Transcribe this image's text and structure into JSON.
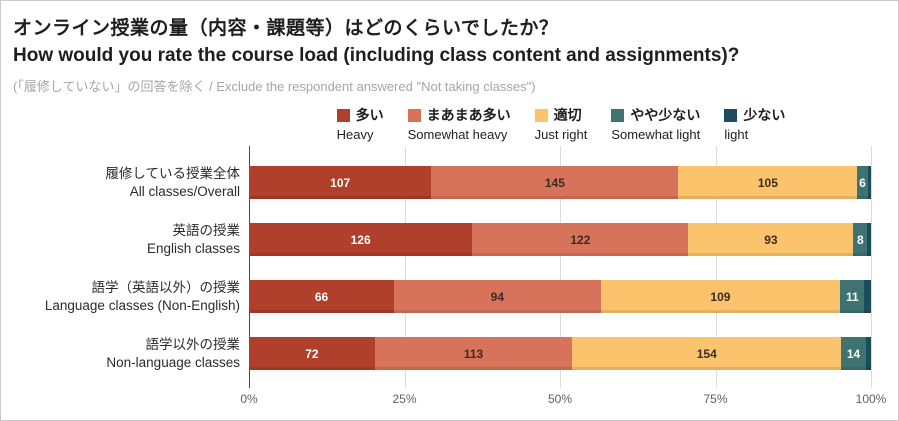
{
  "header": {
    "title_ja": "オンライン授業の量（内容・課題等）はどのくらいでしたか？",
    "title_en": "How would you rate the course load (including class content and assignments)?",
    "subtitle": "(「履修していない」の回答を除く / Exclude the respondent answered \"Not taking classes\")"
  },
  "chart_data": {
    "type": "bar",
    "variant": "horizontal-stacked-100percent",
    "title_ja": "オンライン授業の量（内容・課題等）はどのくらいでしたか？",
    "title_en": "How would you rate the course load (including class content and assignments)?",
    "categories": [
      {
        "label_ja": "履修している授業全体",
        "label_en": "All classes/Overall"
      },
      {
        "label_ja": "英語の授業",
        "label_en": "English classes"
      },
      {
        "label_ja": "語学（英語以外）の授業",
        "label_en": "Language classes (Non-English)"
      },
      {
        "label_ja": "語学以外の授業",
        "label_en": "Non-language classes"
      }
    ],
    "series": [
      {
        "label_ja": "多い",
        "label_en": "Heavy",
        "color": "#b03f2b",
        "label_color": "#ffffff",
        "labels_visible": true,
        "values": [
          107,
          126,
          66,
          72
        ]
      },
      {
        "label_ja": "まあまあ多い",
        "label_en": "Somewhat heavy",
        "color": "#d7735a",
        "label_color": "#3b2b22",
        "labels_visible": true,
        "values": [
          145,
          122,
          94,
          113
        ]
      },
      {
        "label_ja": "適切",
        "label_en": "Just right",
        "color": "#fbc46c",
        "label_color": "#3b2b22",
        "labels_visible": true,
        "values": [
          105,
          93,
          109,
          154
        ]
      },
      {
        "label_ja": "やや少ない",
        "label_en": "Somewhat light",
        "color": "#3e7372",
        "label_color": "#ffffff",
        "labels_visible": true,
        "values": [
          6,
          8,
          11,
          14
        ]
      },
      {
        "label_ja": "少ない",
        "label_en": "light",
        "color": "#1b4e5c",
        "label_color": "#ffffff",
        "labels_visible": false,
        "estimated": true,
        "values": [
          2,
          2,
          3,
          3
        ]
      }
    ],
    "x_ticks": [
      "0%",
      "25%",
      "50%",
      "75%",
      "100%"
    ],
    "xlim": [
      0,
      100
    ],
    "grid": true,
    "legend_position": "top"
  }
}
